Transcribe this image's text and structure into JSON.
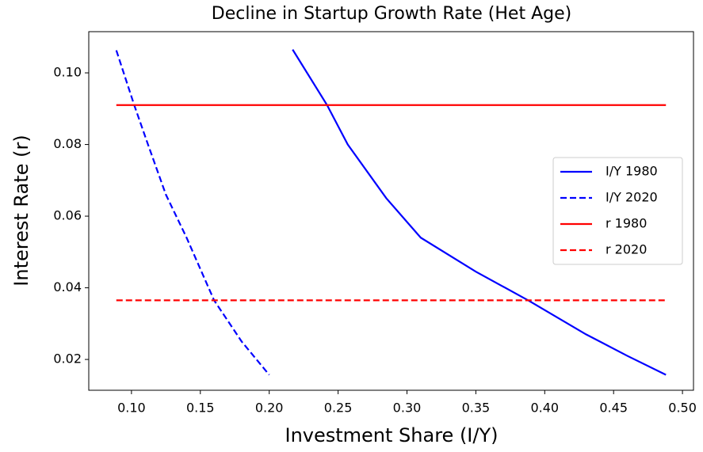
{
  "chart_data": {
    "type": "line",
    "title": "Decline in Startup Growth Rate (Het Age)",
    "xlabel": "Investment Share (I/Y)",
    "ylabel": "Interest Rate (r)",
    "xlim": [
      0.069,
      0.508
    ],
    "ylim": [
      0.0114,
      0.1115
    ],
    "xticks": [
      {
        "value": 0.1,
        "label": "0.10"
      },
      0.15,
      {
        "value": 0.2,
        "label": "0.20"
      },
      0.25,
      {
        "value": 0.3,
        "label": "0.30"
      },
      0.35,
      {
        "value": 0.4,
        "label": "0.40"
      },
      0.45,
      {
        "value": 0.5,
        "label": "0.50"
      }
    ],
    "yticks": [
      0.02,
      0.04,
      0.06,
      0.08,
      {
        "value": 0.1,
        "label": "0.10"
      }
    ],
    "grid": false,
    "legend": "right",
    "series": [
      {
        "name": "I/Y 1980",
        "color": "#0000ff",
        "linestyle": "solid",
        "x": [
          0.217,
          0.242,
          0.257,
          0.285,
          0.31,
          0.35,
          0.388,
          0.43,
          0.46,
          0.488
        ],
        "values": [
          0.1065,
          0.091,
          0.08,
          0.065,
          0.054,
          0.0445,
          0.0365,
          0.027,
          0.021,
          0.0157
        ]
      },
      {
        "name": "I/Y 2020",
        "color": "#0000ff",
        "linestyle": "dashed",
        "x": [
          0.089,
          0.102,
          0.112,
          0.125,
          0.14,
          0.16,
          0.18,
          0.2
        ],
        "values": [
          0.1063,
          0.091,
          0.08,
          0.066,
          0.054,
          0.0365,
          0.025,
          0.0157
        ]
      },
      {
        "name": "r 1980",
        "color": "#ff0000",
        "linestyle": "solid",
        "x": [
          0.089,
          0.488
        ],
        "values": [
          0.091,
          0.091
        ]
      },
      {
        "name": "r 2020",
        "color": "#ff0000",
        "linestyle": "dashed",
        "x": [
          0.089,
          0.488
        ],
        "values": [
          0.0365,
          0.0365
        ]
      }
    ]
  }
}
